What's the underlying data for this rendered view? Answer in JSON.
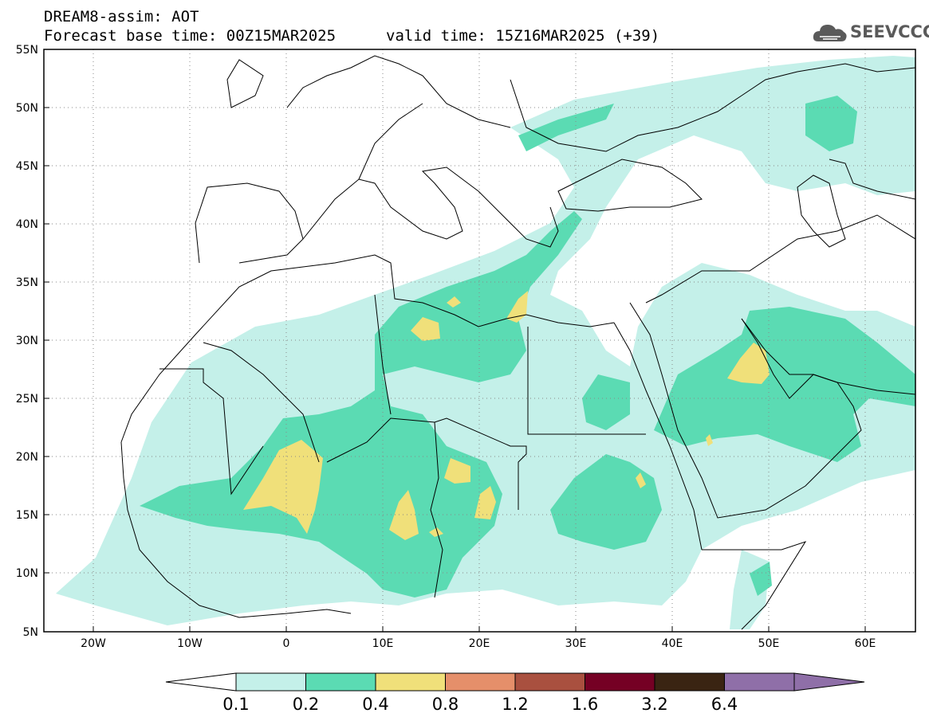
{
  "title": {
    "line1": "DREAM8-assim: AOT",
    "line2_left": "Forecast base time: 00Z15MAR2025",
    "line2_right": "valid time: 15Z16MAR2025 (+39)"
  },
  "logo": {
    "text": "SEEVCCC",
    "icon": "cloud-logo-icon"
  },
  "map": {
    "lon_range": [
      -25,
      65
    ],
    "lat_range": [
      5,
      55
    ],
    "lon_ticks": [
      "20W",
      "10W",
      "0",
      "10E",
      "20E",
      "30E",
      "40E",
      "50E",
      "60E"
    ],
    "lat_ticks": [
      "55N",
      "50N",
      "45N",
      "40N",
      "35N",
      "30N",
      "25N",
      "20N",
      "15N",
      "10N",
      "5N"
    ],
    "grid": "dotted"
  },
  "colorbar": {
    "labels": [
      "0.1",
      "0.2",
      "0.4",
      "0.8",
      "1.2",
      "1.6",
      "3.2",
      "6.4"
    ],
    "colors": [
      "#ffffff",
      "#c4f0e9",
      "#5bdbb3",
      "#f0e07a",
      "#e58f6a",
      "#a9503f",
      "#750024",
      "#3a2412",
      "#8f6fa8"
    ]
  },
  "colors": {
    "level_0_1": "#c4f0e9",
    "level_0_2": "#5bdbb3",
    "level_0_4": "#f0e07a"
  }
}
